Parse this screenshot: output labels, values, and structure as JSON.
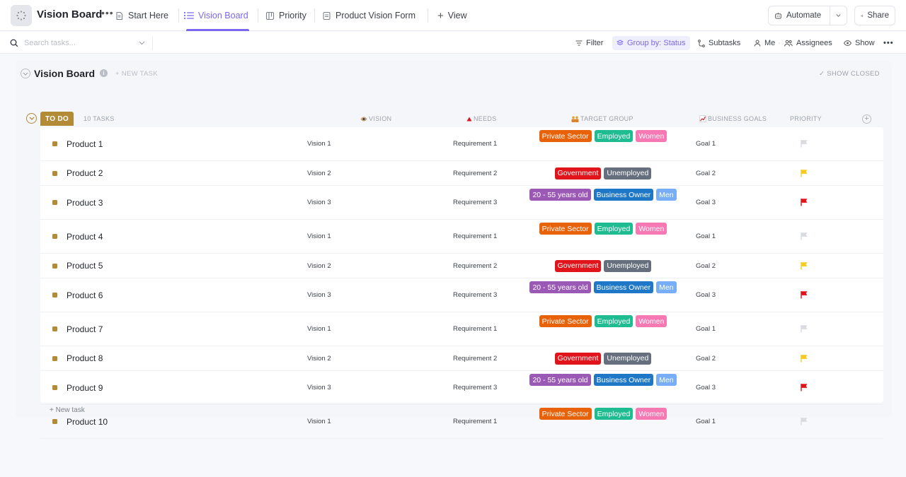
{
  "app": {
    "title": "Vision Board",
    "tabs": [
      {
        "label": "Start Here"
      },
      {
        "label": "Vision Board"
      },
      {
        "label": "Priority"
      },
      {
        "label": "Product Vision Form"
      },
      {
        "label": "View"
      }
    ],
    "automate_label": "Automate",
    "share_label": "Share"
  },
  "toolbar": {
    "search_placeholder": "Search tasks...",
    "filter_label": "Filter",
    "group_label": "Group by: Status",
    "subtasks_label": "Subtasks",
    "me_label": "Me",
    "assignees_label": "Assignees",
    "show_label": "Show"
  },
  "board": {
    "title": "Vision Board",
    "new_task_label": "+ NEW TASK",
    "show_closed_label": "SHOW CLOSED",
    "status_label": "TO DO",
    "status_color": "#b38b37",
    "task_count": "10 TASKS",
    "columns": {
      "vision": "VISION",
      "needs": "NEEDS",
      "target_group": "TARGET GROUP",
      "business_goals": "BUSINESS GOALS",
      "priority": "PRIORITY"
    },
    "new_task_bottom": "+ New task"
  },
  "tag_colors": {
    "Private Sector": "#e8620a",
    "Employed": "#1fbc92",
    "Women": "#f679b4",
    "Government": "#e1141c",
    "Unemployed": "#656f7d",
    "20 - 55 years old": "#9b59b6",
    "Business Owner": "#1f77c7",
    "Men": "#78aef8"
  },
  "priority_colors": {
    "low": "#d8dbe0",
    "normal": "#f8c91f",
    "urgent": "#e1141c"
  },
  "tasks": [
    {
      "name": "Product 1",
      "vision": "Vision 1",
      "needs": "Requirement 1",
      "tags": [
        "Private Sector",
        "Employed",
        "Women"
      ],
      "goal": "Goal 1",
      "priority": "low"
    },
    {
      "name": "Product 2",
      "vision": "Vision 2",
      "needs": "Requirement 2",
      "tags": [
        "Government",
        "Unemployed"
      ],
      "goal": "Goal 2",
      "priority": "normal"
    },
    {
      "name": "Product 3",
      "vision": "Vision 3",
      "needs": "Requirement 3",
      "tags": [
        "20 - 55 years old",
        "Business Owner",
        "Men"
      ],
      "goal": "Goal 3",
      "priority": "urgent"
    },
    {
      "name": "Product 4",
      "vision": "Vision 1",
      "needs": "Requirement 1",
      "tags": [
        "Private Sector",
        "Employed",
        "Women"
      ],
      "goal": "Goal 1",
      "priority": "low"
    },
    {
      "name": "Product 5",
      "vision": "Vision 2",
      "needs": "Requirement 2",
      "tags": [
        "Government",
        "Unemployed"
      ],
      "goal": "Goal 2",
      "priority": "normal"
    },
    {
      "name": "Product 6",
      "vision": "Vision 3",
      "needs": "Requirement 3",
      "tags": [
        "20 - 55 years old",
        "Business Owner",
        "Men"
      ],
      "goal": "Goal 3",
      "priority": "urgent"
    },
    {
      "name": "Product 7",
      "vision": "Vision 1",
      "needs": "Requirement 1",
      "tags": [
        "Private Sector",
        "Employed",
        "Women"
      ],
      "goal": "Goal 1",
      "priority": "low"
    },
    {
      "name": "Product 8",
      "vision": "Vision 2",
      "needs": "Requirement 2",
      "tags": [
        "Government",
        "Unemployed"
      ],
      "goal": "Goal 2",
      "priority": "normal"
    },
    {
      "name": "Product 9",
      "vision": "Vision 3",
      "needs": "Requirement 3",
      "tags": [
        "20 - 55 years old",
        "Business Owner",
        "Men"
      ],
      "goal": "Goal 3",
      "priority": "urgent"
    },
    {
      "name": "Product 10",
      "vision": "Vision 1",
      "needs": "Requirement 1",
      "tags": [
        "Private Sector",
        "Employed",
        "Women"
      ],
      "goal": "Goal 1",
      "priority": "low"
    }
  ]
}
